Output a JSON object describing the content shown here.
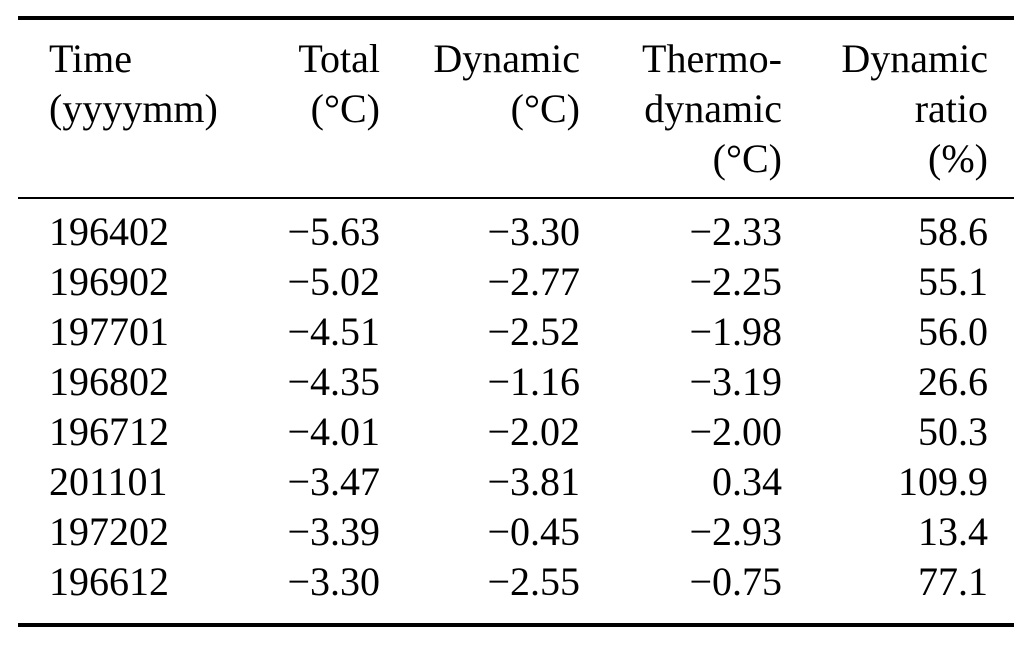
{
  "figure": {
    "description": "Ranked monthly temperature anomaly decomposition table",
    "columns": [
      {
        "key": "time",
        "align": "left",
        "label_lines": [
          "Time",
          "(yyyymm)"
        ]
      },
      {
        "key": "total",
        "align": "right",
        "label_lines": [
          "Total",
          "(°C)"
        ]
      },
      {
        "key": "dynamic",
        "align": "right",
        "label_lines": [
          "Dynamic",
          "(°C)"
        ]
      },
      {
        "key": "thermodynamic",
        "align": "right",
        "label_lines": [
          "Thermo-",
          "dynamic",
          "(°C)"
        ]
      },
      {
        "key": "dynamic-ratio",
        "align": "right",
        "label_lines": [
          "Dynamic",
          "ratio",
          "(%)"
        ]
      }
    ],
    "rows": [
      [
        "196402",
        "−5.63",
        "−3.30",
        "−2.33",
        "58.6"
      ],
      [
        "196902",
        "−5.02",
        "−2.77",
        "−2.25",
        "55.1"
      ],
      [
        "197701",
        "−4.51",
        "−2.52",
        "−1.98",
        "56.0"
      ],
      [
        "196802",
        "−4.35",
        "−1.16",
        "−3.19",
        "26.6"
      ],
      [
        "196712",
        "−4.01",
        "−2.02",
        "−2.00",
        "50.3"
      ],
      [
        "201101",
        "−3.47",
        "−3.81",
        "0.34",
        "109.9"
      ],
      [
        "197202",
        "−3.39",
        "−0.45",
        "−2.93",
        "13.4"
      ],
      [
        "196612",
        "−3.30",
        "−2.55",
        "−0.75",
        "77.1"
      ]
    ]
  },
  "chart_data": {
    "type": "table",
    "title": "",
    "columns": [
      "Time (yyyymm)",
      "Total (°C)",
      "Dynamic (°C)",
      "Thermo-dynamic (°C)",
      "Dynamic ratio (%)"
    ],
    "rows": [
      [
        "196402",
        -5.63,
        -3.3,
        -2.33,
        58.6
      ],
      [
        "196902",
        -5.02,
        -2.77,
        -2.25,
        55.1
      ],
      [
        "197701",
        -4.51,
        -2.52,
        -1.98,
        56.0
      ],
      [
        "196802",
        -4.35,
        -1.16,
        -3.19,
        26.6
      ],
      [
        "196712",
        -4.01,
        -2.02,
        -2.0,
        50.3
      ],
      [
        "201101",
        -3.47,
        -3.81,
        0.34,
        109.9
      ],
      [
        "197202",
        -3.39,
        -0.45,
        -2.93,
        13.4
      ],
      [
        "196612",
        -3.3,
        -2.55,
        -0.75,
        77.1
      ]
    ]
  },
  "colors": {
    "text": "#000000",
    "background": "#ffffff",
    "rule": "#000000"
  }
}
